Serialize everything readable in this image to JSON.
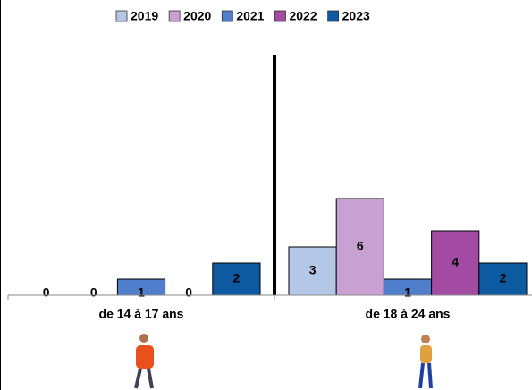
{
  "chart_data": {
    "type": "bar",
    "categories": [
      "de 14 à 17 ans",
      "de 18 à 24 ans"
    ],
    "series": [
      {
        "name": "2019",
        "color": "#b4c7e7",
        "values": [
          0,
          3
        ]
      },
      {
        "name": "2020",
        "color": "#c9a0d2",
        "values": [
          0,
          6
        ]
      },
      {
        "name": "2021",
        "color": "#4f7fcc",
        "values": [
          1,
          1
        ]
      },
      {
        "name": "2022",
        "color": "#a34aa3",
        "values": [
          0,
          4
        ]
      },
      {
        "name": "2023",
        "color": "#0d5aa0",
        "values": [
          2,
          2
        ]
      }
    ],
    "ylim": [
      0,
      15
    ],
    "legend": "top"
  }
}
